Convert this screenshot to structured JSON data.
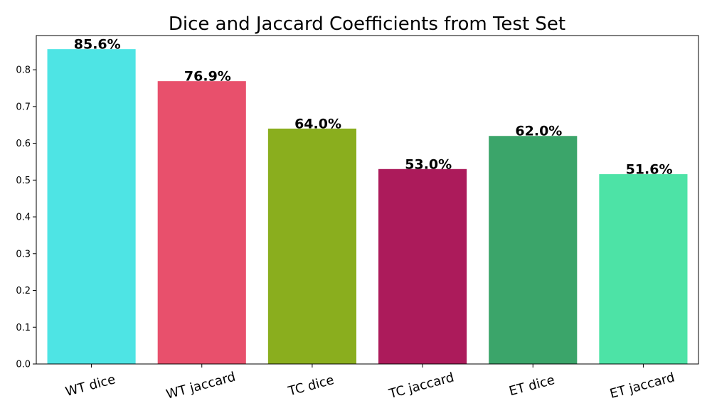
{
  "chart_data": {
    "type": "bar",
    "title": "Dice and Jaccard Coefficients from Test Set",
    "xlabel": "",
    "ylabel": "",
    "categories": [
      "WT dice",
      "WT jaccard",
      "TC dice",
      "TC jaccard",
      "ET dice",
      "ET jaccard"
    ],
    "values": [
      0.856,
      0.769,
      0.64,
      0.53,
      0.62,
      0.516
    ],
    "data_labels": [
      "85.6%",
      "76.9%",
      "64.0%",
      "53.0%",
      "62.0%",
      "51.6%"
    ],
    "colors": [
      "#4ee4e4",
      "#e8506c",
      "#8aae1e",
      "#ac1b5b",
      "#3ba56a",
      "#4de3a6"
    ],
    "ylim": [
      0,
      0.893
    ],
    "yticks": [
      0.0,
      0.1,
      0.2,
      0.3,
      0.4,
      0.5,
      0.6,
      0.7,
      0.8
    ],
    "ytick_labels": [
      "0.0",
      "0.1",
      "0.2",
      "0.3",
      "0.4",
      "0.5",
      "0.6",
      "0.7",
      "0.8"
    ],
    "xtick_rotation": "15°",
    "grid": false,
    "legend": "none"
  }
}
